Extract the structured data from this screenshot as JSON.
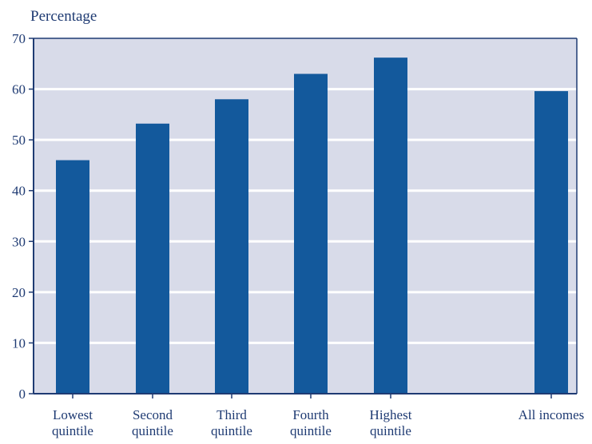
{
  "chart_data": {
    "type": "bar",
    "title": "",
    "xlabel": "",
    "ylabel": "Percentage",
    "ylim": [
      0,
      70
    ],
    "yticks": [
      0,
      10,
      20,
      30,
      40,
      50,
      60,
      70
    ],
    "grid": true,
    "categories": [
      [
        "Lowest",
        "quintile"
      ],
      [
        "Second",
        "quintile"
      ],
      [
        "Third",
        "quintile"
      ],
      [
        "Fourth",
        "quintile"
      ],
      [
        "Highest",
        "quintile"
      ],
      [
        "All incomes"
      ]
    ],
    "values": [
      46,
      53.2,
      58,
      63,
      66.2,
      59.6
    ],
    "colors": {
      "bar": "#13599c",
      "plot_background": "#d8dbe9",
      "gridline": "#ffffff",
      "axis": "#1f3b73",
      "text": "#1f3b73"
    }
  }
}
